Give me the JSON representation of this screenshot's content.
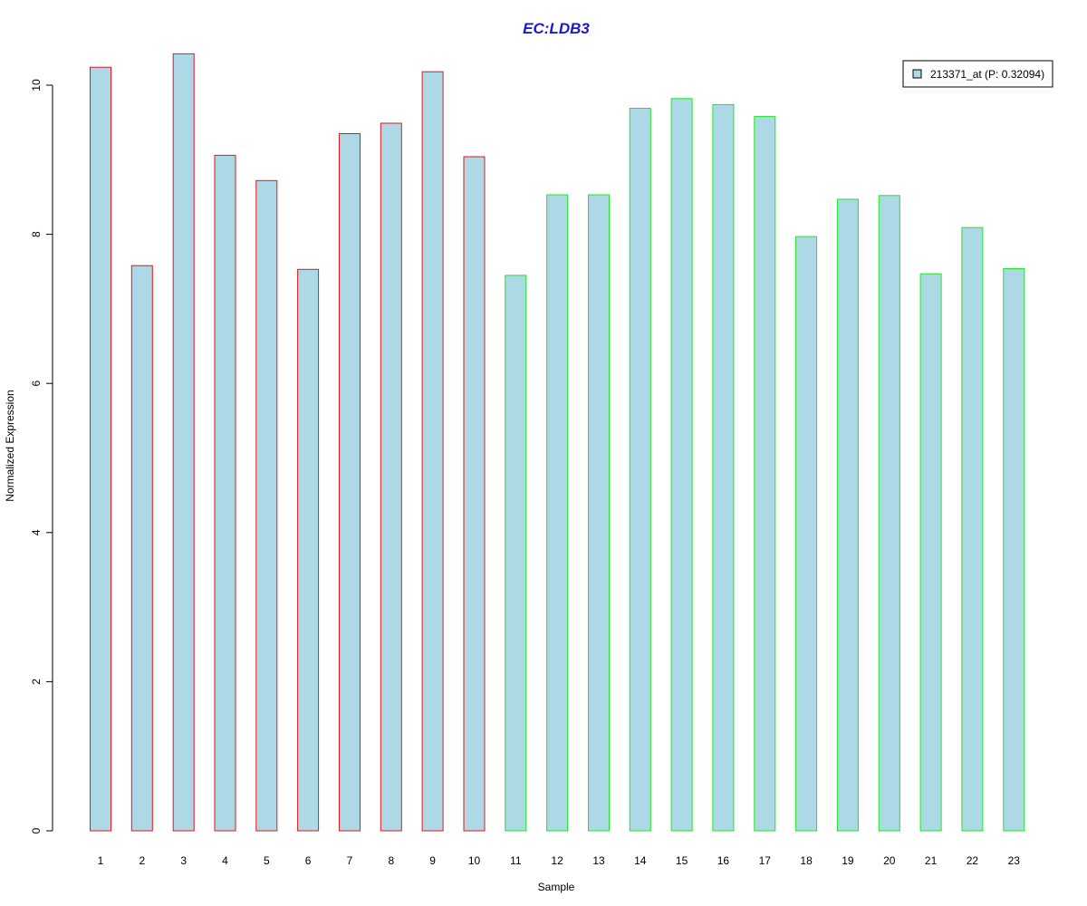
{
  "chart_data": {
    "type": "bar",
    "title": "EC:LDB3",
    "xlabel": "Sample",
    "ylabel": "Normalized Expression",
    "categories": [
      "1",
      "2",
      "3",
      "4",
      "5",
      "6",
      "7",
      "8",
      "9",
      "10",
      "11",
      "12",
      "13",
      "14",
      "15",
      "16",
      "17",
      "18",
      "19",
      "20",
      "21",
      "22",
      "23"
    ],
    "series": [
      {
        "name": "213371_at (P: 0.32094)",
        "values": [
          10.24,
          7.58,
          10.42,
          9.06,
          8.72,
          7.53,
          9.35,
          9.49,
          10.18,
          9.04,
          7.45,
          8.53,
          8.53,
          9.69,
          9.82,
          9.74,
          9.58,
          7.97,
          8.47,
          8.52,
          7.47,
          8.09,
          7.54
        ]
      }
    ],
    "group_border_colors": [
      "#e8141a",
      "#e8141a",
      "#e8141a",
      "#e8141a",
      "#e8141a",
      "#e8141a",
      "#e8141a",
      "#e8141a",
      "#e8141a",
      "#e8141a",
      "#1ee81e",
      "#1ee81e",
      "#1ee81e",
      "#1ee81e",
      "#1ee81e",
      "#1ee81e",
      "#1ee81e",
      "#1ee81e",
      "#1ee81e",
      "#1ee81e",
      "#1ee81e",
      "#1ee81e",
      "#1ee81e"
    ],
    "bar_fill": "#add8e6",
    "title_color": "#1a1acd",
    "y_ticks": [
      0,
      2,
      4,
      6,
      8,
      10
    ],
    "ylim": [
      0,
      10.5
    ],
    "grid": false,
    "legend_position": "top-right"
  }
}
